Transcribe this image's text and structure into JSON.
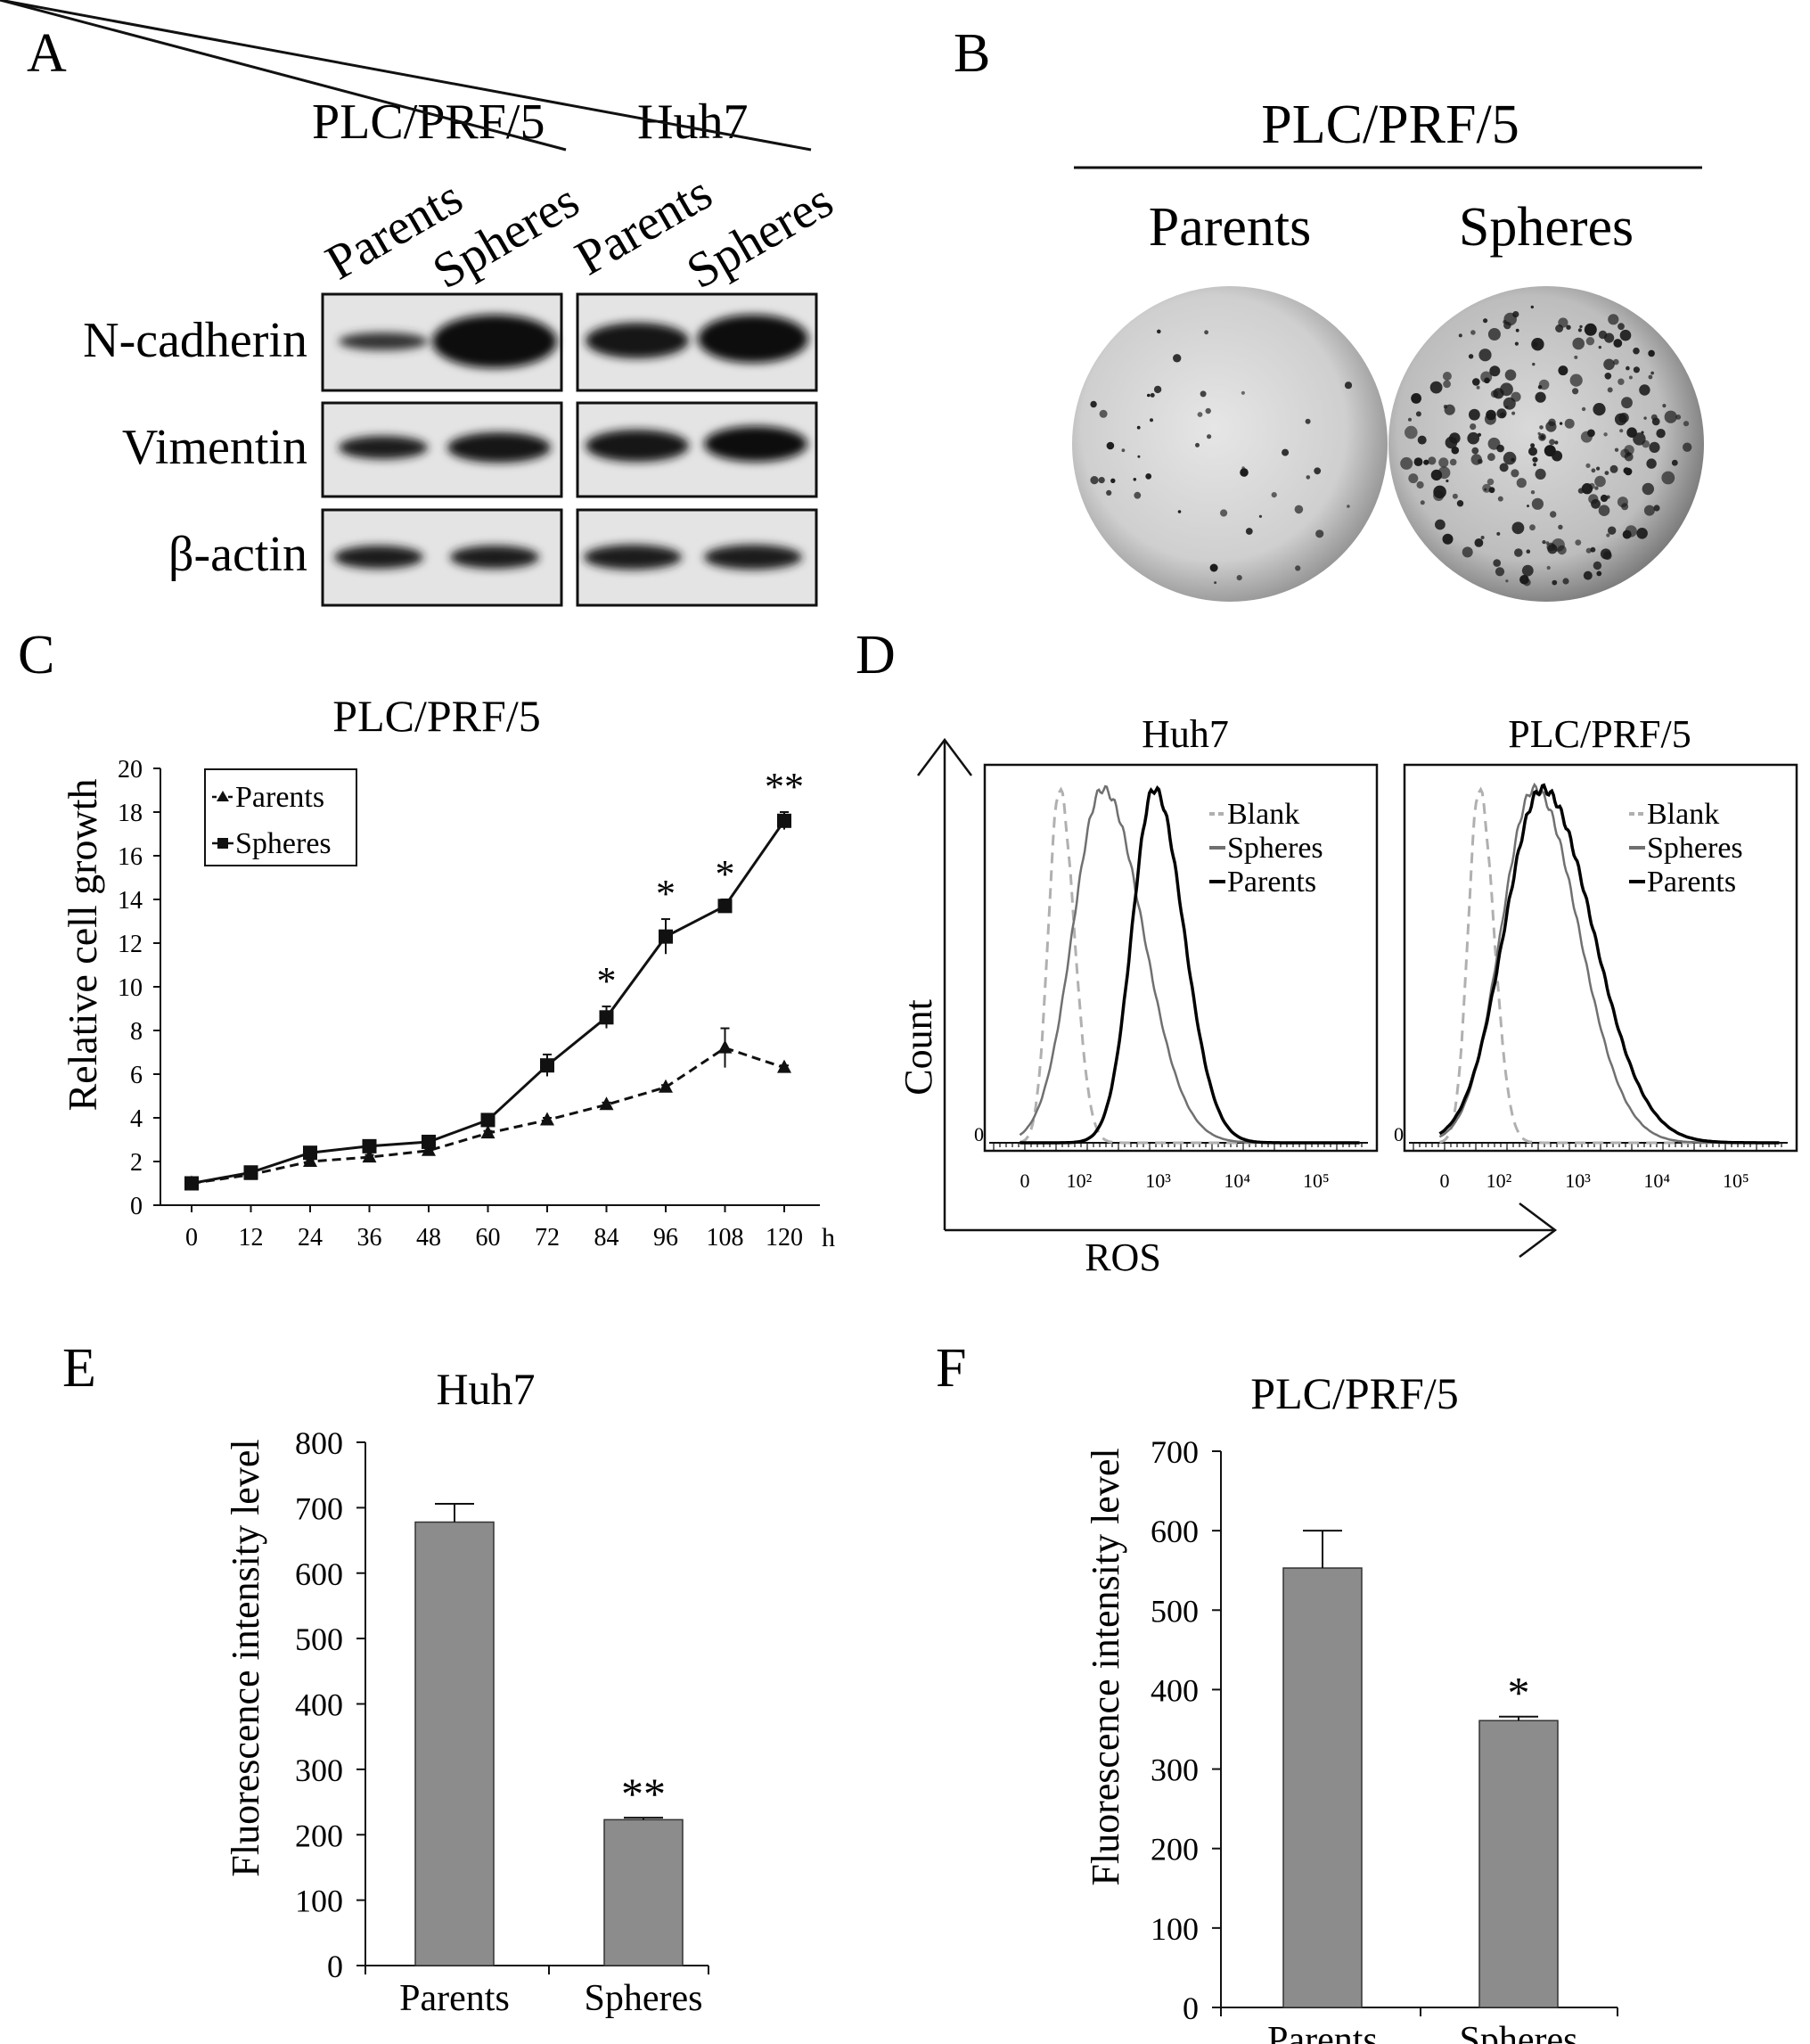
{
  "panels": {
    "A": {
      "letter": "A",
      "groups": [
        "PLC/PRF/5",
        "Huh7"
      ],
      "lanes": [
        "Parents",
        "Spheres",
        "Parents",
        "Spheres"
      ],
      "proteins": [
        "N-cadherin",
        "Vimentin",
        "β-actin"
      ]
    },
    "B": {
      "letter": "B",
      "title": "PLC/PRF/5",
      "labels": [
        "Parents",
        "Spheres"
      ]
    },
    "C": {
      "letter": "C"
    },
    "D": {
      "letter": "D"
    },
    "E": {
      "letter": "E"
    },
    "F": {
      "letter": "F"
    }
  },
  "colors": {
    "bar_fill": "#8c8c8c",
    "blank_line": "#b0b0b0",
    "spheres_line": "#707070",
    "parents_line": "#000000"
  },
  "chart_data": [
    {
      "panel": "C",
      "type": "line",
      "title": "PLC/PRF/5",
      "xlabel": "",
      "x_unit": "h",
      "ylabel": "Relative cell growth",
      "x": [
        0,
        12,
        24,
        36,
        48,
        60,
        72,
        84,
        96,
        108,
        120
      ],
      "ylim": [
        0,
        20
      ],
      "yticks": [
        0,
        2,
        4,
        6,
        8,
        10,
        12,
        14,
        16,
        18,
        20
      ],
      "legend_position": "top-left",
      "series": [
        {
          "name": "Parents",
          "marker": "triangle",
          "dashed": true,
          "values": [
            1.0,
            1.4,
            2.0,
            2.2,
            2.5,
            3.3,
            3.9,
            4.6,
            5.4,
            7.2,
            6.3
          ],
          "errors": [
            0,
            0,
            0.1,
            0.1,
            0.1,
            0.1,
            0.1,
            0.1,
            0.1,
            0.9,
            0.1
          ]
        },
        {
          "name": "Spheres",
          "marker": "square",
          "dashed": false,
          "values": [
            1.0,
            1.5,
            2.4,
            2.7,
            2.9,
            3.9,
            6.4,
            8.6,
            12.3,
            13.7,
            17.6
          ],
          "errors": [
            0,
            0.1,
            0.1,
            0.1,
            0.1,
            0.1,
            0.5,
            0.5,
            0.8,
            0.3,
            0.4
          ]
        }
      ],
      "annotations": [
        {
          "x": 84,
          "text": "*"
        },
        {
          "x": 96,
          "text": "*"
        },
        {
          "x": 108,
          "text": "*"
        },
        {
          "x": 120,
          "text": "**"
        }
      ]
    },
    {
      "panel": "D",
      "type": "line",
      "xlabel": "ROS",
      "ylabel": "Count",
      "x_log": true,
      "x_ticks": [
        "0",
        "10²",
        "10³",
        "10⁴",
        "10⁵"
      ],
      "y_tick": "0",
      "subplots": [
        {
          "title": "Huh7",
          "series": [
            {
              "name": "Blank",
              "peak_log": 1.75,
              "width": 0.14
            },
            {
              "name": "Spheres",
              "peak_log": 2.3,
              "width": 0.38
            },
            {
              "name": "Parents",
              "peak_log": 2.95,
              "width": 0.28
            }
          ]
        },
        {
          "title": "PLC/PRF/5",
          "series": [
            {
              "name": "Blank",
              "peak_log": 1.75,
              "width": 0.14
            },
            {
              "name": "Spheres",
              "peak_log": 2.45,
              "width": 0.42
            },
            {
              "name": "Parents",
              "peak_log": 2.55,
              "width": 0.48
            }
          ]
        }
      ]
    },
    {
      "panel": "E",
      "type": "bar",
      "title": "Huh7",
      "ylabel": "Fluorescence intensity level",
      "categories": [
        "Parents",
        "Spheres"
      ],
      "values": [
        678,
        223
      ],
      "errors": [
        28,
        3
      ],
      "ylim": [
        0,
        800
      ],
      "yticks": [
        0,
        100,
        200,
        300,
        400,
        500,
        600,
        700,
        800
      ],
      "annotations": [
        {
          "category": "Spheres",
          "text": "**"
        }
      ]
    },
    {
      "panel": "F",
      "type": "bar",
      "title": "PLC/PRF/5",
      "ylabel": "Fluorescence intensity level",
      "categories": [
        "Parents",
        "Spheres"
      ],
      "values": [
        553,
        361
      ],
      "errors": [
        47,
        5
      ],
      "ylim": [
        0,
        700
      ],
      "yticks": [
        0,
        100,
        200,
        300,
        400,
        500,
        600,
        700
      ],
      "annotations": [
        {
          "category": "Spheres",
          "text": "*"
        }
      ]
    }
  ]
}
